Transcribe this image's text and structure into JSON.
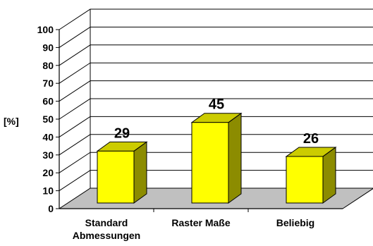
{
  "chart_data": {
    "type": "bar",
    "ylabel": "[%]",
    "ylim": [
      0,
      100
    ],
    "yticks": [
      0,
      10,
      20,
      30,
      40,
      50,
      60,
      70,
      80,
      90,
      100
    ],
    "grid": true,
    "categories": [
      {
        "lines": [
          "Standard",
          "Abmessungen"
        ]
      },
      {
        "lines": [
          "Raster Maße"
        ]
      },
      {
        "lines": [
          "Beliebig"
        ]
      }
    ],
    "values": [
      29,
      45,
      26
    ],
    "data_labels": [
      "29",
      "45",
      "26"
    ],
    "colors": {
      "bar_front": "#ffff00",
      "bar_side": "#8c8c00",
      "bar_top": "#cccc00",
      "floor": "#c0c0c0"
    }
  }
}
